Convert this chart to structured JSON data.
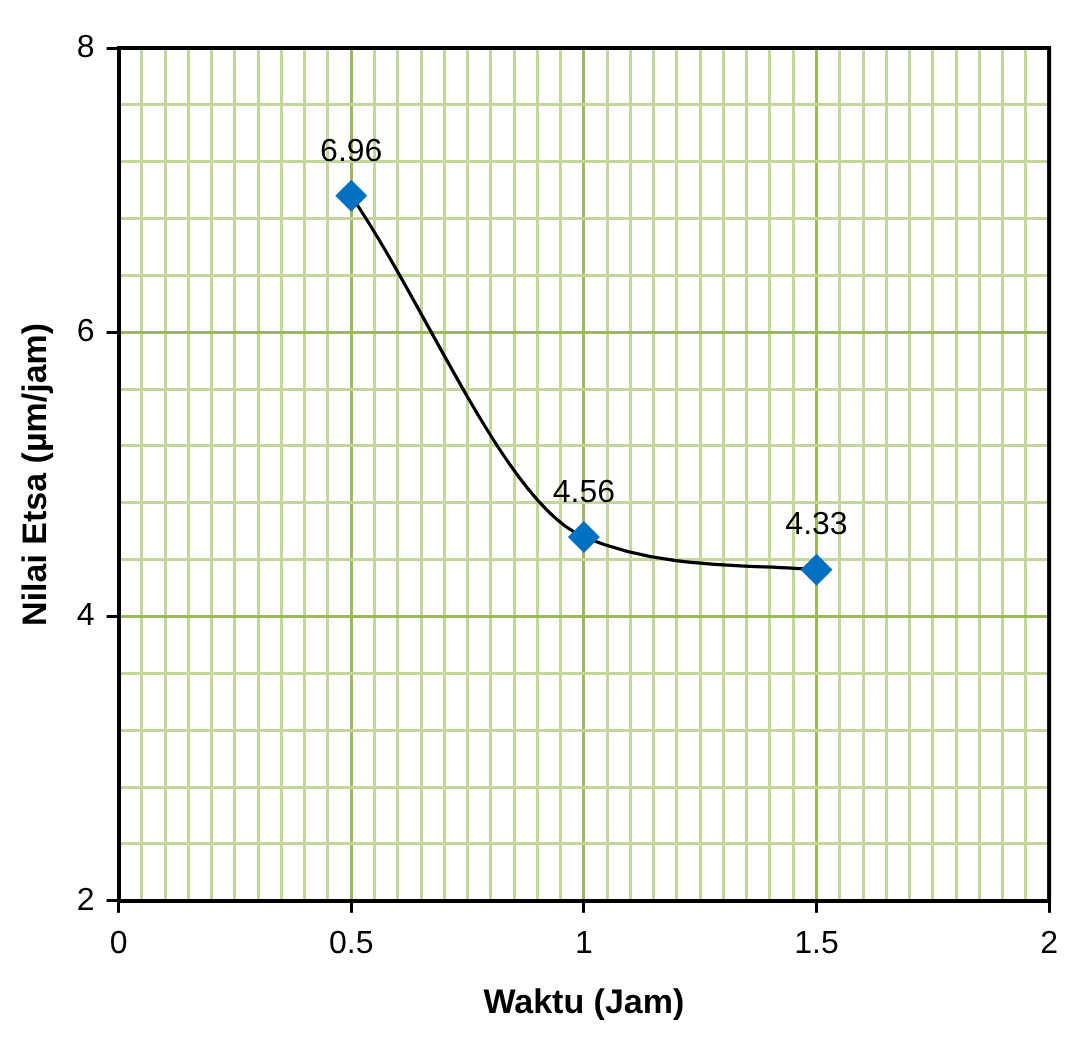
{
  "chart_data": {
    "type": "line",
    "xlabel": "Waktu (Jam)",
    "ylabel": "Nilai Etsa (µm/jam)",
    "x": [
      0.5,
      1,
      1.5
    ],
    "series": [
      {
        "color": "#0070c0",
        "values": [
          6.96,
          4.56,
          4.33
        ]
      }
    ],
    "xlim": [
      0,
      2
    ],
    "ylim": [
      2,
      8
    ],
    "xticks": [
      0,
      {
        "value": 0.05,
        "label": null
      },
      {
        "value": 0.1,
        "label": null
      },
      {
        "value": 0.15,
        "label": null
      },
      {
        "value": 0.2,
        "label": null
      },
      {
        "value": 0.25,
        "label": null
      },
      {
        "value": 0.3,
        "label": null
      },
      {
        "value": 0.35,
        "label": null
      },
      {
        "value": 0.4,
        "label": null
      },
      {
        "value": 0.45,
        "label": null
      },
      0.5,
      {
        "value": 0.55,
        "label": null
      },
      {
        "value": 0.6,
        "label": null
      },
      {
        "value": 0.65,
        "label": null
      },
      {
        "value": 0.7,
        "label": null
      },
      {
        "value": 0.75,
        "label": null
      },
      {
        "value": 0.8,
        "label": null
      },
      {
        "value": 0.85,
        "label": null
      },
      {
        "value": 0.9,
        "label": null
      },
      {
        "value": 0.95,
        "label": null
      },
      1,
      {
        "value": 1.05,
        "label": null
      },
      {
        "value": 1.1,
        "label": null
      },
      {
        "value": 1.15,
        "label": null
      },
      {
        "value": 1.2,
        "label": null
      },
      {
        "value": 1.25,
        "label": null
      },
      {
        "value": 1.3,
        "label": null
      },
      {
        "value": 1.35,
        "label": null
      },
      {
        "value": 1.4,
        "label": null
      },
      {
        "value": 1.45,
        "label": null
      },
      1.5,
      {
        "value": 1.55,
        "label": null
      },
      {
        "value": 1.6,
        "label": null
      },
      {
        "value": 1.65,
        "label": null
      },
      {
        "value": 1.7,
        "label": null
      },
      {
        "value": 1.75,
        "label": null
      },
      {
        "value": 1.8,
        "label": null
      },
      {
        "value": 1.85,
        "label": null
      },
      {
        "value": 1.9,
        "label": null
      },
      {
        "value": 1.95,
        "label": null
      },
      2
    ],
    "yticks": [
      2,
      {
        "value": 2.4,
        "label": null
      },
      {
        "value": 2.8,
        "label": null
      },
      {
        "value": 3.2,
        "label": null
      },
      {
        "value": 3.6,
        "label": null
      },
      4,
      {
        "value": 4.4,
        "label": null
      },
      {
        "value": 4.8,
        "label": null
      },
      {
        "value": 5.2,
        "label": null
      },
      {
        "value": 5.6,
        "label": null
      },
      6,
      {
        "value": 6.4,
        "label": null
      },
      {
        "value": 6.8,
        "label": null
      },
      {
        "value": 7.2,
        "label": null
      },
      {
        "value": 7.6,
        "label": null
      },
      8
    ],
    "grid": true,
    "marker": "diamond",
    "line_style": "solid",
    "data_labels": true,
    "legend": false
  }
}
